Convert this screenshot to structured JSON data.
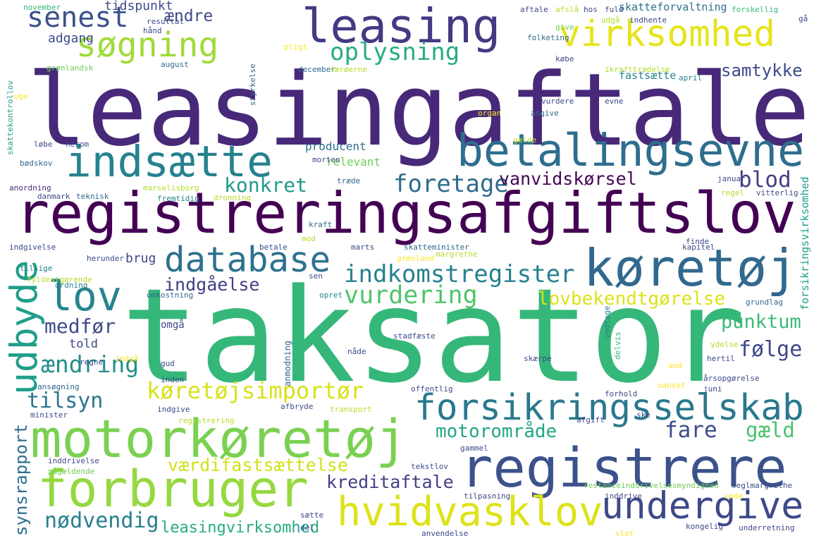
{
  "words": [
    "leasingaftale",
    "taksator",
    "registreringsafgiftslov",
    "leasing",
    "indsætte",
    "betalingsevne",
    "virksomhed",
    "søgning",
    "senest",
    "oplysning",
    "samtykke",
    "database",
    "køretøj",
    "lov",
    "udbyde",
    "indkomstregister",
    "vurdering",
    "lovbekendtgørelse",
    "indgåelse",
    "konkret",
    "foretage",
    "vanvidskørsel",
    "blod",
    "medfør",
    "ændring",
    "tilsyn",
    "køretøjsimportør",
    "forsikringsselskab",
    "punktum",
    "følge",
    "motorkøretøj",
    "forbruger",
    "registrere",
    "fare",
    "motorområde",
    "gæld",
    "værdifastsættelse",
    "kreditaftale",
    "hvidvasklov",
    "undergive",
    "nødvendig",
    "leasingvirksomhed",
    "synsrapport",
    "ændre",
    "tidspunkt",
    "adgang",
    "fastsætte",
    "skatteforvaltning",
    "told",
    "brug",
    "omgå",
    "producent",
    "relevant",
    "forsikringsvirksomhed",
    "november",
    "resultat",
    "hånd",
    "grønlandsk",
    "august",
    "uge",
    "skattekontrollov",
    "løbe",
    "herom",
    "bødskov",
    "anordning",
    "danmark",
    "teknisk",
    "marselisborg",
    "fremtidig",
    "dronning",
    "morten",
    "træde",
    "styrkelse",
    "pligt",
    "december",
    "færøerne",
    "aftale",
    "afslå",
    "hos",
    "fuld",
    "forskellig",
    "gå",
    "indhente",
    "udgå",
    "give",
    "folketing",
    "købe",
    "ikrafttrædelse",
    "april",
    "vurdere",
    "evne",
    "angive",
    "organ",
    "gælde",
    "januar",
    "regel",
    "vitterlig",
    "kraft",
    "mod",
    "indgivelse",
    "betale",
    "marts",
    "skatteminister",
    "kapitel",
    "finde",
    "herunder",
    "tilsige",
    "fyldestgørende",
    "ordning",
    "sen",
    "omkostning",
    "opret",
    "grønland",
    "margrethe",
    "grundlag",
    "regne",
    "indgå",
    "gud",
    "inden",
    "anmodning",
    "stadfæste",
    "nåde",
    "vedtage",
    "delvis",
    "ydelse",
    "skærpe",
    "hertil",
    "and",
    "årsopgørelse",
    "ansøgning",
    "forhold",
    "uanset",
    "juni",
    "offentlig",
    "indgive",
    "registrering",
    "minister",
    "afbryde",
    "transport",
    "ske",
    "afgift",
    "gammel",
    "inddrivelse",
    "pågældende",
    "tekstlov",
    "restanceinddrivelsesmyndighed",
    "seglmargrethe",
    "tilpasning",
    "inddrive",
    "unde",
    "sætte",
    "del",
    "anvendelse",
    "slot",
    "kongelig",
    "underretning"
  ]
}
